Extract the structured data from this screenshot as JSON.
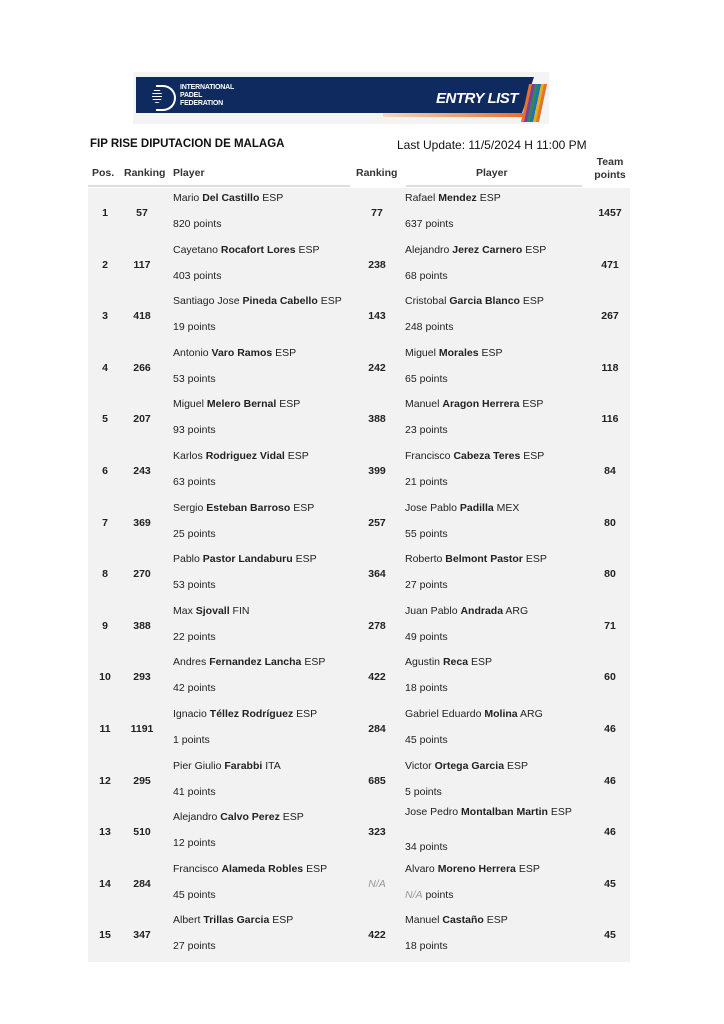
{
  "banner": {
    "org_line1": "INTERNATIONAL",
    "org_line2": "PADEL",
    "org_line3": "FEDERATION",
    "title": "ENTRY LIST"
  },
  "tournament": "FIP RISE DIPUTACION DE MALAGA",
  "last_update": "Last Update: 11/5/2024 H 11:00 PM",
  "headers": {
    "pos": "Pos.",
    "ranking1": "Ranking",
    "player1": "Player",
    "ranking2": "Ranking",
    "player2": "Player",
    "team_line1": "Team",
    "team_line2": "points"
  },
  "points_suffix": "points",
  "rows": [
    {
      "pos": "1",
      "r1": "57",
      "p1": {
        "first": "Mario",
        "last": "Del Castillo",
        "country": "ESP",
        "points": "820"
      },
      "r2": "77",
      "p2": {
        "first": "Rafael",
        "last": "Mendez",
        "country": "ESP",
        "points": "637"
      },
      "team": "1457"
    },
    {
      "pos": "2",
      "r1": "117",
      "p1": {
        "first": "Cayetano",
        "last": "Rocafort Lores",
        "country": "ESP",
        "points": "403"
      },
      "r2": "238",
      "p2": {
        "first": "Alejandro",
        "last": "Jerez Carnero",
        "country": "ESP",
        "points": "68"
      },
      "team": "471"
    },
    {
      "pos": "3",
      "r1": "418",
      "p1": {
        "first": "Santiago Jose",
        "last": "Pineda Cabello",
        "country": "ESP",
        "points": "19"
      },
      "r2": "143",
      "p2": {
        "first": "Cristobal",
        "last": "Garcia Blanco",
        "country": "ESP",
        "points": "248"
      },
      "team": "267"
    },
    {
      "pos": "4",
      "r1": "266",
      "p1": {
        "first": "Antonio",
        "last": "Varo Ramos",
        "country": "ESP",
        "points": "53"
      },
      "r2": "242",
      "p2": {
        "first": "Miguel",
        "last": "Morales",
        "country": "ESP",
        "points": "65"
      },
      "team": "118"
    },
    {
      "pos": "5",
      "r1": "207",
      "p1": {
        "first": "Miguel",
        "last": "Melero Bernal",
        "country": "ESP",
        "points": "93"
      },
      "r2": "388",
      "p2": {
        "first": "Manuel",
        "last": "Aragon Herrera",
        "country": "ESP",
        "points": "23"
      },
      "team": "116"
    },
    {
      "pos": "6",
      "r1": "243",
      "p1": {
        "first": "Karlos",
        "last": "Rodriguez Vidal",
        "country": "ESP",
        "points": "63"
      },
      "r2": "399",
      "p2": {
        "first": "Francisco",
        "last": "Cabeza Teres",
        "country": "ESP",
        "points": "21"
      },
      "team": "84"
    },
    {
      "pos": "7",
      "r1": "369",
      "p1": {
        "first": "Sergio",
        "last": "Esteban Barroso",
        "country": "ESP",
        "points": "25"
      },
      "r2": "257",
      "p2": {
        "first": "Jose Pablo",
        "last": "Padilla",
        "country": "MEX",
        "points": "55"
      },
      "team": "80"
    },
    {
      "pos": "8",
      "r1": "270",
      "p1": {
        "first": "Pablo",
        "last": "Pastor Landaburu",
        "country": "ESP",
        "points": "53"
      },
      "r2": "364",
      "p2": {
        "first": "Roberto",
        "last": "Belmont Pastor",
        "country": "ESP",
        "points": "27"
      },
      "team": "80"
    },
    {
      "pos": "9",
      "r1": "388",
      "p1": {
        "first": "Max",
        "last": "Sjovall",
        "country": "FIN",
        "points": "22"
      },
      "r2": "278",
      "p2": {
        "first": "Juan Pablo",
        "last": "Andrada",
        "country": "ARG",
        "points": "49"
      },
      "team": "71"
    },
    {
      "pos": "10",
      "r1": "293",
      "p1": {
        "first": "Andres",
        "last": "Fernandez Lancha",
        "country": "ESP",
        "points": "42"
      },
      "r2": "422",
      "p2": {
        "first": "Agustin",
        "last": "Reca",
        "country": "ESP",
        "points": "18"
      },
      "team": "60"
    },
    {
      "pos": "11",
      "r1": "1191",
      "p1": {
        "first": "Ignacio",
        "last": "Téllez Rodríguez",
        "country": "ESP",
        "points": "1"
      },
      "r2": "284",
      "p2": {
        "first": "Gabriel Eduardo",
        "last": "Molina",
        "country": "ARG",
        "points": "45"
      },
      "team": "46"
    },
    {
      "pos": "12",
      "r1": "295",
      "p1": {
        "first": "Pier Giulio",
        "last": "Farabbi",
        "country": "ITA",
        "points": "41"
      },
      "r2": "685",
      "p2": {
        "first": "Victor",
        "last": "Ortega Garcia",
        "country": "ESP",
        "points": "5"
      },
      "team": "46"
    },
    {
      "pos": "13",
      "r1": "510",
      "p1": {
        "first": "Alejandro",
        "last": "Calvo Perez",
        "country": "ESP",
        "points": "12"
      },
      "r2": "323",
      "p2": {
        "first": "Jose Pedro",
        "last": "Montalban Martin",
        "country": "ESP",
        "points": "34"
      },
      "team": "46"
    },
    {
      "pos": "14",
      "r1": "284",
      "p1": {
        "first": "Francisco",
        "last": "Alameda Robles",
        "country": "ESP",
        "points": "45"
      },
      "r2": "N/A",
      "p2": {
        "first": "Alvaro",
        "last": "Moreno Herrera",
        "country": "ESP",
        "points": "N/A"
      },
      "team": "45"
    },
    {
      "pos": "15",
      "r1": "347",
      "p1": {
        "first": "Albert",
        "last": "Trillas Garcia",
        "country": "ESP",
        "points": "27"
      },
      "r2": "422",
      "p2": {
        "first": "Manuel",
        "last": "Castaño",
        "country": "ESP",
        "points": "18"
      },
      "team": "45"
    }
  ]
}
